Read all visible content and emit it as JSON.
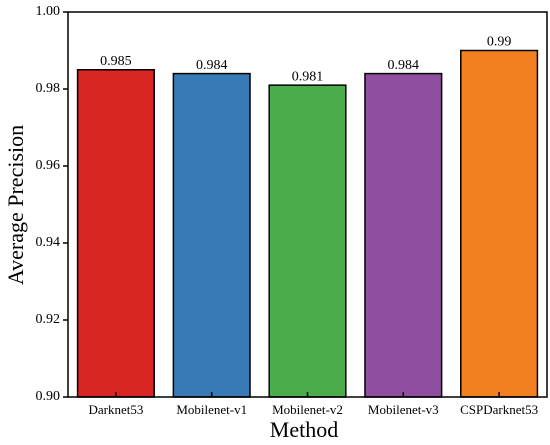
{
  "chart_data": {
    "type": "bar",
    "xlabel": "Method",
    "ylabel": "Average Precision",
    "categories": [
      "Darknet53",
      "Mobilenet-v1",
      "Mobilenet-v2",
      "Mobilenet-v3",
      "CSPDarknet53"
    ],
    "values": [
      0.985,
      0.984,
      0.981,
      0.984,
      0.99
    ],
    "colors": [
      "#d92523",
      "#377ab5",
      "#4aac4a",
      "#8f4e9f",
      "#f38020"
    ],
    "ylim": [
      0.9,
      1.0
    ],
    "yticks": [
      {
        "value": 0.9,
        "label": "0.90"
      },
      {
        "value": 0.92,
        "label": "0.92"
      },
      {
        "value": 0.94,
        "label": "0.94"
      },
      {
        "value": 0.96,
        "label": "0.96"
      },
      {
        "value": 0.98,
        "label": "0.98"
      },
      {
        "value": 1.0,
        "label": "1.00"
      }
    ],
    "grid": false
  }
}
